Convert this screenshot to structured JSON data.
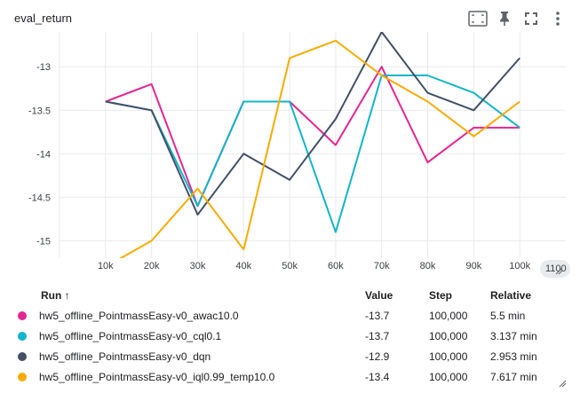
{
  "panel": {
    "title": "eval_return",
    "icons": [
      "fit-to-data-icon",
      "pin-icon",
      "fullscreen-icon",
      "more-options-icon"
    ]
  },
  "chart_data": {
    "type": "line",
    "title": "eval_return",
    "x": [
      10000,
      20000,
      30000,
      40000,
      50000,
      60000,
      70000,
      80000,
      90000,
      100000
    ],
    "x_tick_labels": [
      "10k",
      "20k",
      "30k",
      "40k",
      "50k",
      "60k",
      "70k",
      "80k",
      "90k",
      "100k"
    ],
    "x_overflow_label": "1100",
    "y_ticks": [
      -13,
      -13.5,
      -14,
      -14.5,
      -15
    ],
    "y_tick_labels": [
      "-13",
      "-13.5",
      "-14",
      "-14.5",
      "-15"
    ],
    "xlim": [
      0,
      110000
    ],
    "ylim": [
      -15.2,
      -12.6
    ],
    "grid": true,
    "series": [
      {
        "name": "hw5_offline_PointmassEasy-v0_awac10.0",
        "color": "#e52592",
        "values": [
          -13.4,
          -13.2,
          -14.6,
          -13.4,
          -13.4,
          -13.9,
          -13.0,
          -14.1,
          -13.7,
          -13.7
        ]
      },
      {
        "name": "hw5_offline_PointmassEasy-v0_cql0.1",
        "color": "#12b5cb",
        "values": [
          -13.4,
          -13.5,
          -14.6,
          -13.4,
          -13.4,
          -14.9,
          -13.1,
          -13.1,
          -13.3,
          -13.7
        ]
      },
      {
        "name": "hw5_offline_PointmassEasy-v0_dqn",
        "color": "#425066",
        "values": [
          -13.4,
          -13.5,
          -14.7,
          -14.0,
          -14.3,
          -13.6,
          -12.6,
          -13.3,
          -13.5,
          -12.9
        ]
      },
      {
        "name": "hw5_offline_PointmassEasy-v0_iql0.99_temp10.0",
        "color": "#f9ab00",
        "values": [
          -15.3,
          -15.0,
          -14.4,
          -15.1,
          -12.9,
          -12.7,
          -13.1,
          -13.4,
          -13.8,
          -13.4
        ]
      }
    ]
  },
  "table": {
    "headers": {
      "run": "Run ↑",
      "value": "Value",
      "step": "Step",
      "relative": "Relative"
    },
    "rows": [
      {
        "color": "#e52592",
        "run": "hw5_offline_PointmassEasy-v0_awac10.0",
        "value": "-13.7",
        "step": "100,000",
        "relative": "5.5 min"
      },
      {
        "color": "#12b5cb",
        "run": "hw5_offline_PointmassEasy-v0_cql0.1",
        "value": "-13.7",
        "step": "100,000",
        "relative": "3.137 min"
      },
      {
        "color": "#425066",
        "run": "hw5_offline_PointmassEasy-v0_dqn",
        "value": "-12.9",
        "step": "100,000",
        "relative": "2.953 min"
      },
      {
        "color": "#f9ab00",
        "run": "hw5_offline_PointmassEasy-v0_iql0.99_temp10.0",
        "value": "-13.4",
        "step": "100,000",
        "relative": "7.617 min"
      }
    ]
  }
}
